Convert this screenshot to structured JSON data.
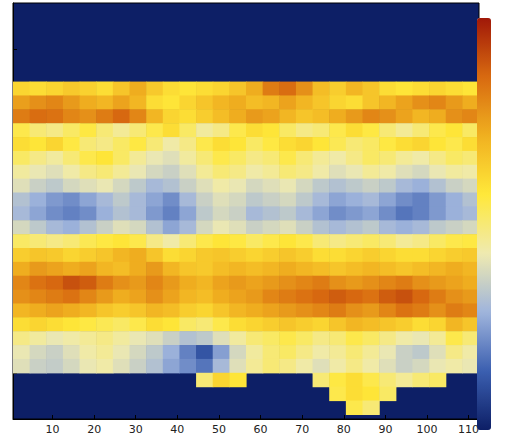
{
  "chart_data": {
    "type": "heatmap",
    "xlim": [
      0.5,
      112.5
    ],
    "xticks": [
      10,
      20,
      30,
      40,
      50,
      60,
      70,
      80,
      90,
      100,
      110
    ],
    "ylim": [
      0,
      90
    ],
    "yticks": [
      10,
      20,
      30,
      40,
      50,
      60,
      70,
      80
    ],
    "tick_labels": "x",
    "cell_size": [
      4,
      3
    ],
    "x": [
      2.5,
      6.5,
      10.5,
      14.5,
      18.5,
      22.5,
      26.5,
      30.5,
      34.5,
      38.5,
      42.5,
      46.5,
      50.5,
      54.5,
      58.5,
      62.5,
      66.5,
      70.5,
      74.5,
      78.5,
      82.5,
      86.5,
      90.5,
      94.5,
      98.5,
      102.5,
      106.5,
      110.5
    ],
    "y": [
      71.5,
      68.5,
      65.5,
      62.5,
      59.5,
      56.5,
      53.5,
      50.5,
      47.5,
      44.5,
      41.5,
      38.5,
      35.5,
      32.5,
      29.5,
      26.5,
      23.5,
      20.5,
      17.5,
      14.5,
      11.5,
      8.5,
      5.5,
      2.5
    ],
    "cells": [
      [
        0.62,
        0.6,
        0.62,
        0.65,
        0.63,
        0.6,
        0.66,
        0.72,
        0.65,
        0.6,
        0.58,
        0.6,
        0.62,
        0.66,
        0.72,
        0.82,
        0.85,
        0.78,
        0.68,
        0.64,
        0.7,
        0.66,
        0.6,
        0.58,
        0.6,
        0.62,
        0.6,
        0.58
      ],
      [
        0.75,
        0.78,
        0.8,
        0.76,
        0.72,
        0.7,
        0.74,
        0.7,
        0.6,
        0.58,
        0.62,
        0.66,
        0.7,
        0.72,
        0.68,
        0.7,
        0.74,
        0.7,
        0.66,
        0.62,
        0.6,
        0.66,
        0.7,
        0.74,
        0.78,
        0.8,
        0.76,
        0.72
      ],
      [
        0.82,
        0.85,
        0.84,
        0.8,
        0.78,
        0.82,
        0.86,
        0.8,
        0.7,
        0.62,
        0.6,
        0.64,
        0.68,
        0.72,
        0.76,
        0.74,
        0.7,
        0.66,
        0.68,
        0.72,
        0.76,
        0.8,
        0.78,
        0.74,
        0.7,
        0.72,
        0.78,
        0.8
      ],
      [
        0.55,
        0.5,
        0.48,
        0.52,
        0.56,
        0.5,
        0.46,
        0.5,
        0.55,
        0.6,
        0.52,
        0.45,
        0.48,
        0.55,
        0.6,
        0.58,
        0.52,
        0.48,
        0.5,
        0.55,
        0.6,
        0.56,
        0.5,
        0.46,
        0.5,
        0.55,
        0.58,
        0.52
      ],
      [
        0.6,
        0.58,
        0.62,
        0.56,
        0.5,
        0.48,
        0.52,
        0.56,
        0.5,
        0.44,
        0.48,
        0.55,
        0.6,
        0.58,
        0.52,
        0.56,
        0.6,
        0.62,
        0.58,
        0.54,
        0.5,
        0.52,
        0.56,
        0.6,
        0.62,
        0.58,
        0.55,
        0.6
      ],
      [
        0.52,
        0.48,
        0.45,
        0.5,
        0.55,
        0.58,
        0.52,
        0.46,
        0.42,
        0.4,
        0.45,
        0.5,
        0.55,
        0.52,
        0.48,
        0.5,
        0.55,
        0.5,
        0.46,
        0.44,
        0.48,
        0.52,
        0.5,
        0.46,
        0.44,
        0.48,
        0.52,
        0.5
      ],
      [
        0.45,
        0.42,
        0.4,
        0.44,
        0.48,
        0.5,
        0.46,
        0.42,
        0.38,
        0.36,
        0.4,
        0.46,
        0.5,
        0.48,
        0.44,
        0.46,
        0.5,
        0.48,
        0.44,
        0.4,
        0.42,
        0.46,
        0.44,
        0.4,
        0.38,
        0.42,
        0.45,
        0.44
      ],
      [
        0.4,
        0.36,
        0.34,
        0.38,
        0.4,
        0.42,
        0.38,
        0.34,
        0.3,
        0.32,
        0.36,
        0.4,
        0.44,
        0.42,
        0.38,
        0.4,
        0.42,
        0.38,
        0.34,
        0.32,
        0.34,
        0.36,
        0.34,
        0.3,
        0.28,
        0.32,
        0.36,
        0.38
      ],
      [
        0.32,
        0.28,
        0.24,
        0.22,
        0.26,
        0.3,
        0.34,
        0.3,
        0.26,
        0.22,
        0.3,
        0.36,
        0.4,
        0.38,
        0.34,
        0.36,
        0.38,
        0.34,
        0.3,
        0.26,
        0.28,
        0.3,
        0.26,
        0.22,
        0.2,
        0.24,
        0.28,
        0.32
      ],
      [
        0.3,
        0.26,
        0.22,
        0.2,
        0.22,
        0.28,
        0.32,
        0.3,
        0.24,
        0.2,
        0.26,
        0.34,
        0.38,
        0.36,
        0.3,
        0.32,
        0.34,
        0.3,
        0.26,
        0.22,
        0.24,
        0.26,
        0.22,
        0.18,
        0.2,
        0.24,
        0.28,
        0.3
      ],
      [
        0.38,
        0.34,
        0.3,
        0.28,
        0.32,
        0.36,
        0.4,
        0.38,
        0.32,
        0.26,
        0.3,
        0.38,
        0.42,
        0.4,
        0.36,
        0.38,
        0.4,
        0.36,
        0.32,
        0.3,
        0.32,
        0.34,
        0.3,
        0.28,
        0.3,
        0.34,
        0.36,
        0.38
      ],
      [
        0.52,
        0.5,
        0.48,
        0.5,
        0.54,
        0.56,
        0.58,
        0.55,
        0.48,
        0.44,
        0.5,
        0.55,
        0.58,
        0.56,
        0.52,
        0.55,
        0.58,
        0.55,
        0.5,
        0.48,
        0.5,
        0.52,
        0.5,
        0.46,
        0.48,
        0.52,
        0.55,
        0.56
      ],
      [
        0.64,
        0.66,
        0.65,
        0.62,
        0.64,
        0.66,
        0.7,
        0.72,
        0.66,
        0.6,
        0.62,
        0.65,
        0.66,
        0.64,
        0.62,
        0.64,
        0.66,
        0.64,
        0.6,
        0.6,
        0.62,
        0.64,
        0.62,
        0.6,
        0.6,
        0.62,
        0.64,
        0.65
      ],
      [
        0.72,
        0.76,
        0.74,
        0.72,
        0.74,
        0.7,
        0.68,
        0.72,
        0.76,
        0.7,
        0.66,
        0.65,
        0.68,
        0.7,
        0.68,
        0.7,
        0.72,
        0.7,
        0.68,
        0.66,
        0.68,
        0.7,
        0.68,
        0.66,
        0.68,
        0.7,
        0.72,
        0.7
      ],
      [
        0.8,
        0.84,
        0.86,
        0.9,
        0.88,
        0.82,
        0.78,
        0.76,
        0.8,
        0.76,
        0.72,
        0.7,
        0.74,
        0.76,
        0.74,
        0.76,
        0.78,
        0.8,
        0.82,
        0.78,
        0.76,
        0.78,
        0.8,
        0.82,
        0.78,
        0.76,
        0.74,
        0.72
      ],
      [
        0.78,
        0.8,
        0.82,
        0.84,
        0.8,
        0.76,
        0.72,
        0.74,
        0.78,
        0.74,
        0.7,
        0.68,
        0.72,
        0.74,
        0.76,
        0.8,
        0.82,
        0.84,
        0.86,
        0.88,
        0.86,
        0.84,
        0.88,
        0.9,
        0.86,
        0.82,
        0.78,
        0.76
      ],
      [
        0.7,
        0.72,
        0.74,
        0.72,
        0.7,
        0.66,
        0.64,
        0.66,
        0.7,
        0.68,
        0.64,
        0.62,
        0.66,
        0.7,
        0.72,
        0.74,
        0.76,
        0.78,
        0.8,
        0.82,
        0.78,
        0.76,
        0.8,
        0.84,
        0.82,
        0.78,
        0.82,
        0.8
      ],
      [
        0.6,
        0.62,
        0.6,
        0.58,
        0.56,
        0.54,
        0.52,
        0.55,
        0.6,
        0.58,
        0.52,
        0.5,
        0.55,
        0.6,
        0.62,
        0.64,
        0.66,
        0.64,
        0.62,
        0.66,
        0.7,
        0.68,
        0.66,
        0.64,
        0.6,
        0.62,
        0.7,
        0.66
      ],
      [
        0.48,
        0.45,
        0.42,
        0.44,
        0.46,
        0.48,
        0.45,
        0.42,
        0.4,
        0.36,
        0.32,
        0.34,
        0.4,
        0.45,
        0.5,
        0.52,
        0.55,
        0.52,
        0.48,
        0.5,
        0.55,
        0.52,
        0.48,
        0.44,
        0.42,
        0.46,
        0.55,
        0.5
      ],
      [
        0.42,
        0.38,
        0.36,
        0.4,
        0.44,
        0.46,
        0.42,
        0.38,
        0.34,
        0.28,
        0.2,
        0.12,
        0.25,
        0.38,
        0.45,
        0.5,
        0.52,
        0.48,
        0.44,
        0.46,
        0.5,
        0.46,
        0.42,
        0.36,
        0.34,
        0.4,
        0.48,
        0.44
      ],
      [
        0.4,
        0.36,
        0.35,
        0.38,
        0.42,
        0.44,
        0.4,
        0.36,
        0.32,
        0.26,
        0.22,
        0.18,
        0.3,
        0.4,
        0.46,
        0.5,
        0.48,
        0.44,
        0.4,
        0.44,
        0.48,
        0.44,
        0.4,
        0.36,
        0.38,
        0.42,
        0.44,
        0.42
      ],
      [
        null,
        null,
        null,
        null,
        null,
        null,
        null,
        null,
        null,
        null,
        null,
        0.5,
        0.62,
        0.58,
        null,
        null,
        null,
        null,
        0.5,
        0.56,
        0.6,
        0.55,
        0.5,
        0.46,
        0.5,
        0.52,
        null,
        null
      ],
      [
        null,
        null,
        null,
        null,
        null,
        null,
        null,
        null,
        null,
        null,
        null,
        null,
        null,
        null,
        null,
        null,
        null,
        null,
        null,
        0.55,
        0.6,
        0.58,
        0.52,
        null,
        null,
        null,
        null,
        null
      ],
      [
        null,
        null,
        null,
        null,
        null,
        null,
        null,
        null,
        null,
        null,
        null,
        null,
        null,
        null,
        null,
        null,
        null,
        null,
        null,
        null,
        0.55,
        0.5,
        null,
        null,
        null,
        null,
        null,
        null
      ]
    ],
    "colorbar": {
      "range": [
        0,
        1
      ]
    }
  }
}
